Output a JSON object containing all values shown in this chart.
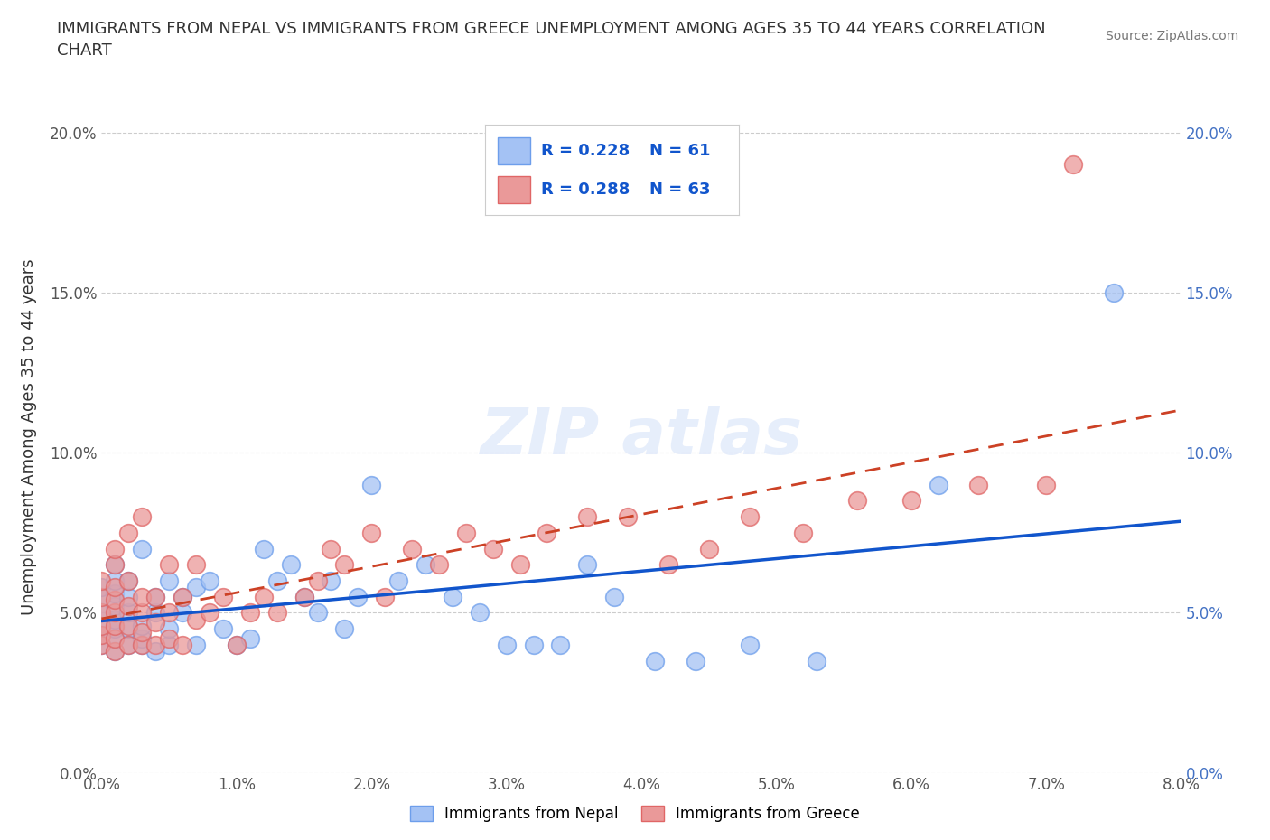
{
  "title": "IMMIGRANTS FROM NEPAL VS IMMIGRANTS FROM GREECE UNEMPLOYMENT AMONG AGES 35 TO 44 YEARS CORRELATION\nCHART",
  "source": "Source: ZipAtlas.com",
  "ylabel_label": "Unemployment Among Ages 35 to 44 years",
  "x_min": 0.0,
  "x_max": 0.08,
  "y_min": 0.0,
  "y_max": 0.21,
  "nepal_color": "#a4c2f4",
  "nepal_edge": "#6d9eeb",
  "greece_color": "#ea9999",
  "greece_edge": "#e06666",
  "nepal_R": 0.228,
  "nepal_N": 61,
  "greece_R": 0.288,
  "greece_N": 63,
  "legend_color": "#1155cc",
  "nepal_trend_color": "#1155cc",
  "greece_trend_color": "#cc4125",
  "grid_color": "#b7b7b7",
  "background_color": "#ffffff",
  "nepal_x": [
    0.0,
    0.0,
    0.0,
    0.0,
    0.0,
    0.0,
    0.001,
    0.001,
    0.001,
    0.001,
    0.001,
    0.001,
    0.001,
    0.001,
    0.002,
    0.002,
    0.002,
    0.002,
    0.002,
    0.003,
    0.003,
    0.003,
    0.003,
    0.004,
    0.004,
    0.004,
    0.005,
    0.005,
    0.005,
    0.006,
    0.006,
    0.007,
    0.007,
    0.008,
    0.009,
    0.01,
    0.011,
    0.012,
    0.013,
    0.014,
    0.015,
    0.016,
    0.017,
    0.018,
    0.019,
    0.02,
    0.022,
    0.024,
    0.026,
    0.028,
    0.03,
    0.032,
    0.034,
    0.036,
    0.038,
    0.041,
    0.044,
    0.048,
    0.053,
    0.062,
    0.075
  ],
  "nepal_y": [
    0.04,
    0.043,
    0.046,
    0.05,
    0.055,
    0.058,
    0.038,
    0.042,
    0.045,
    0.048,
    0.052,
    0.056,
    0.06,
    0.065,
    0.04,
    0.045,
    0.05,
    0.055,
    0.06,
    0.04,
    0.042,
    0.046,
    0.07,
    0.038,
    0.05,
    0.055,
    0.04,
    0.045,
    0.06,
    0.05,
    0.055,
    0.04,
    0.058,
    0.06,
    0.045,
    0.04,
    0.042,
    0.07,
    0.06,
    0.065,
    0.055,
    0.05,
    0.06,
    0.045,
    0.055,
    0.09,
    0.06,
    0.065,
    0.055,
    0.05,
    0.04,
    0.04,
    0.04,
    0.065,
    0.055,
    0.035,
    0.035,
    0.04,
    0.035,
    0.09,
    0.15
  ],
  "greece_x": [
    0.0,
    0.0,
    0.0,
    0.0,
    0.0,
    0.0,
    0.001,
    0.001,
    0.001,
    0.001,
    0.001,
    0.001,
    0.001,
    0.001,
    0.002,
    0.002,
    0.002,
    0.002,
    0.002,
    0.003,
    0.003,
    0.003,
    0.003,
    0.003,
    0.004,
    0.004,
    0.004,
    0.005,
    0.005,
    0.005,
    0.006,
    0.006,
    0.007,
    0.007,
    0.008,
    0.009,
    0.01,
    0.011,
    0.012,
    0.013,
    0.015,
    0.016,
    0.017,
    0.018,
    0.02,
    0.021,
    0.023,
    0.025,
    0.027,
    0.029,
    0.031,
    0.033,
    0.036,
    0.039,
    0.042,
    0.045,
    0.048,
    0.052,
    0.056,
    0.06,
    0.065,
    0.07,
    0.072
  ],
  "greece_y": [
    0.04,
    0.043,
    0.046,
    0.05,
    0.055,
    0.06,
    0.038,
    0.042,
    0.046,
    0.05,
    0.054,
    0.058,
    0.065,
    0.07,
    0.04,
    0.046,
    0.052,
    0.06,
    0.075,
    0.04,
    0.044,
    0.05,
    0.055,
    0.08,
    0.04,
    0.047,
    0.055,
    0.042,
    0.05,
    0.065,
    0.04,
    0.055,
    0.048,
    0.065,
    0.05,
    0.055,
    0.04,
    0.05,
    0.055,
    0.05,
    0.055,
    0.06,
    0.07,
    0.065,
    0.075,
    0.055,
    0.07,
    0.065,
    0.075,
    0.07,
    0.065,
    0.075,
    0.08,
    0.08,
    0.065,
    0.07,
    0.08,
    0.075,
    0.085,
    0.085,
    0.09,
    0.09,
    0.19
  ]
}
